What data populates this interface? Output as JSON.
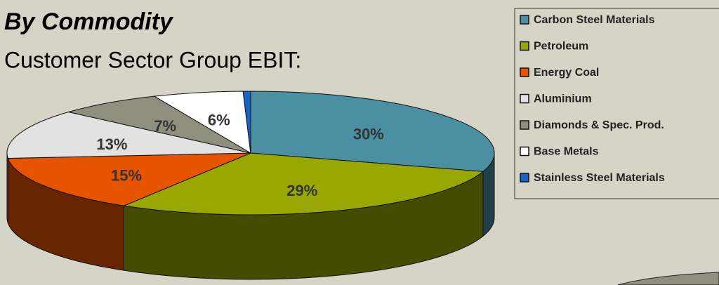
{
  "chart_data": {
    "type": "pie",
    "title": "By Commodity",
    "subtitle": "Customer Sector Group EBIT:",
    "categories": [
      "Carbon Steel Materials",
      "Petroleum",
      "Energy Coal",
      "Aluminium",
      "Diamonds & Spec. Prod.",
      "Base Metals",
      "Stainless Steel Materials"
    ],
    "values": [
      30,
      29,
      15,
      13,
      7,
      6,
      0.5
    ],
    "value_labels": [
      "30%",
      "29%",
      "15%",
      "13%",
      "7%",
      "6%",
      null
    ],
    "colors": [
      "#4a8fa2",
      "#99a800",
      "#e65400",
      "#e2e2e2",
      "#8f8f7d",
      "#ffffff",
      "#1a62c4"
    ],
    "legend": "right"
  }
}
